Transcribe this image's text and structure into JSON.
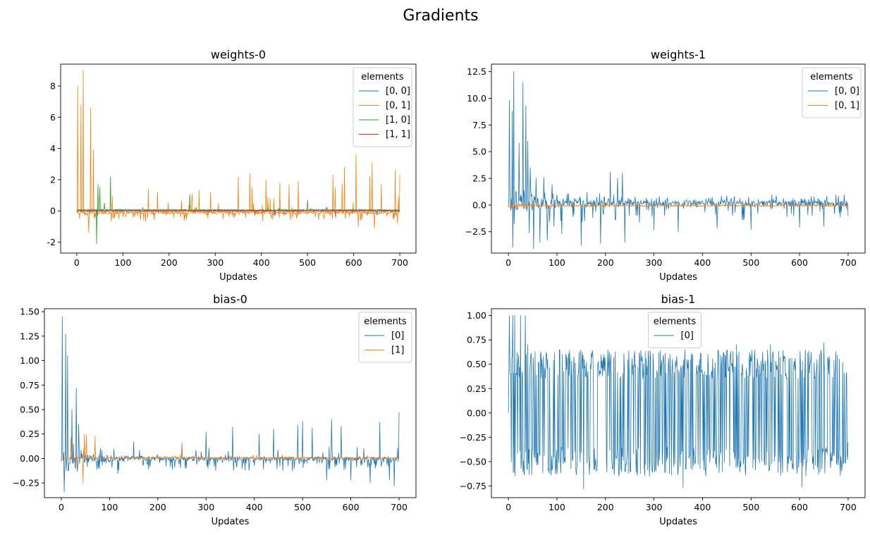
{
  "figure": {
    "title": "Gradients"
  },
  "chart_data": [
    {
      "type": "line",
      "title": "weights-0",
      "xlabel": "Updates",
      "ylabel": "",
      "xlim": [
        -35,
        735
      ],
      "ylim": [
        -2.7,
        9.4
      ],
      "xticks": [
        0,
        100,
        200,
        300,
        400,
        500,
        600,
        700
      ],
      "yticks": [
        -2,
        0,
        2,
        4,
        6,
        8
      ],
      "grid": false,
      "legend": {
        "title": "elements",
        "position": "top-right"
      },
      "series": [
        {
          "name": "[0, 0]",
          "color": "#1f77b4",
          "n": 701,
          "profile": {
            "seed": 11,
            "base": 0.03,
            "noise": 0.06,
            "decay": 0.04,
            "spikes_pos": 0.01,
            "spikes_neg": 0.03,
            "spike_pos_mag": 0.25,
            "spike_neg_mag": 0.3
          },
          "points": [
            [
              0,
              0.0
            ],
            [
              45,
              -0.3
            ],
            [
              430,
              -0.25
            ],
            [
              560,
              -0.3
            ],
            [
              650,
              -0.25
            ]
          ]
        },
        {
          "name": "[0, 1]",
          "color": "#ff7f0e",
          "n": 701,
          "profile": {
            "seed": 23,
            "base": -0.1,
            "noise": 0.1,
            "decay": 0.0,
            "spikes_pos": 0.035,
            "spikes_neg": 0.12,
            "spike_pos_mag": 1.2,
            "spike_neg_mag": 0.5
          },
          "points": [
            [
              2,
              8.0
            ],
            [
              6,
              -0.5
            ],
            [
              9,
              6.8
            ],
            [
              14,
              9.0
            ],
            [
              18,
              -0.3
            ],
            [
              26,
              -1.4
            ],
            [
              30,
              6.6
            ],
            [
              36,
              3.9
            ],
            [
              40,
              -0.4
            ],
            [
              155,
              1.4
            ],
            [
              175,
              1.2
            ],
            [
              250,
              1.1
            ],
            [
              265,
              1.3
            ],
            [
              290,
              1.2
            ],
            [
              350,
              2.2
            ],
            [
              375,
              2.4
            ],
            [
              380,
              1.5
            ],
            [
              410,
              2.0
            ],
            [
              440,
              1.8
            ],
            [
              460,
              1.7
            ],
            [
              480,
              1.9
            ],
            [
              555,
              2.3
            ],
            [
              560,
              1.5
            ],
            [
              575,
              1.7
            ],
            [
              580,
              2.8
            ],
            [
              605,
              3.6
            ],
            [
              610,
              -1.0
            ],
            [
              635,
              2.2
            ],
            [
              640,
              3.1
            ],
            [
              645,
              -1.1
            ],
            [
              660,
              1.7
            ],
            [
              690,
              2.6
            ],
            [
              695,
              -0.8
            ],
            [
              700,
              2.3
            ]
          ]
        },
        {
          "name": "[1, 0]",
          "color": "#2ca02c",
          "n": 701,
          "profile": {
            "seed": 37,
            "base": 0.06,
            "noise": 0.04,
            "decay": 0.0,
            "spikes_pos": 0.01,
            "spikes_neg": 0.005,
            "spike_pos_mag": 0.2,
            "spike_neg_mag": 0.1
          },
          "points": [
            [
              43,
              -2.1
            ],
            [
              46,
              1.7
            ],
            [
              50,
              1.5
            ],
            [
              60,
              0.5
            ],
            [
              73,
              2.2
            ],
            [
              245,
              1.0
            ],
            [
              500,
              0.7
            ]
          ]
        },
        {
          "name": "[1, 1]",
          "color": "#d62728",
          "n": 701,
          "profile": {
            "seed": 41,
            "base": 0.0,
            "noise": 0.03,
            "decay": 0.0,
            "spikes_pos": 0.0,
            "spikes_neg": 0.0,
            "spike_pos_mag": 0.0,
            "spike_neg_mag": 0.0
          },
          "points": []
        }
      ]
    },
    {
      "type": "line",
      "title": "weights-1",
      "xlabel": "Updates",
      "ylabel": "",
      "xlim": [
        -35,
        735
      ],
      "ylim": [
        -4.5,
        13.2
      ],
      "xticks": [
        0,
        100,
        200,
        300,
        400,
        500,
        600,
        700
      ],
      "yticks": [
        -2.5,
        0.0,
        2.5,
        5.0,
        7.5,
        10.0,
        12.5
      ],
      "grid": false,
      "legend": {
        "title": "elements",
        "position": "top-right"
      },
      "series": [
        {
          "name": "[0, 0]",
          "color": "#1f77b4",
          "n": 701,
          "profile": {
            "seed": 53,
            "base": 0.15,
            "noise": 0.25,
            "decay": 0.8,
            "spikes_pos": 0.25,
            "spikes_neg": 0.12,
            "spike_pos_mag": 0.6,
            "spike_neg_mag": 1.4
          },
          "points": [
            [
              2,
              9.8
            ],
            [
              5,
              -0.5
            ],
            [
              8,
              8.8
            ],
            [
              11,
              12.5
            ],
            [
              14,
              -0.3
            ],
            [
              22,
              5.8
            ],
            [
              30,
              11.5
            ],
            [
              36,
              9.3
            ],
            [
              40,
              6.0
            ],
            [
              45,
              3.5
            ],
            [
              52,
              -4.1
            ],
            [
              57,
              2.5
            ],
            [
              65,
              -3.5
            ],
            [
              73,
              2.6
            ],
            [
              80,
              -3.3
            ],
            [
              90,
              1.9
            ],
            [
              110,
              -2.7
            ],
            [
              150,
              -3.8
            ],
            [
              190,
              -3.6
            ],
            [
              210,
              3.1
            ],
            [
              225,
              2.5
            ],
            [
              235,
              3.0
            ],
            [
              240,
              -3.5
            ],
            [
              300,
              -2.3
            ],
            [
              350,
              -2.5
            ],
            [
              430,
              -2.2
            ],
            [
              500,
              -2.3
            ],
            [
              600,
              -2.1
            ],
            [
              650,
              -2.0
            ],
            [
              700,
              -1.0
            ]
          ]
        },
        {
          "name": "[0, 1]",
          "color": "#ff7f0e",
          "n": 701,
          "profile": {
            "seed": 67,
            "base": -0.05,
            "noise": 0.08,
            "decay": 0.1,
            "spikes_pos": 0.02,
            "spikes_neg": 0.02,
            "spike_pos_mag": 0.15,
            "spike_neg_mag": 0.15
          },
          "points": []
        }
      ]
    },
    {
      "type": "line",
      "title": "bias-0",
      "xlabel": "Updates",
      "ylabel": "",
      "xlim": [
        -35,
        735
      ],
      "ylim": [
        -0.4,
        1.53
      ],
      "xticks": [
        0,
        100,
        200,
        300,
        400,
        500,
        600,
        700
      ],
      "yticks": [
        -0.25,
        0.0,
        0.25,
        0.5,
        0.75,
        1.0,
        1.25,
        1.5
      ],
      "grid": false,
      "legend": {
        "title": "elements",
        "position": "top-right"
      },
      "series": [
        {
          "name": "[0]",
          "color": "#1f77b4",
          "n": 701,
          "profile": {
            "seed": 79,
            "base": 0.0,
            "noise": 0.02,
            "decay": 0.05,
            "spikes_pos": 0.05,
            "spikes_neg": 0.22,
            "spike_pos_mag": 0.12,
            "spike_neg_mag": 0.12
          },
          "points": [
            [
              2,
              1.45
            ],
            [
              6,
              -0.34
            ],
            [
              9,
              1.27
            ],
            [
              13,
              1.05
            ],
            [
              17,
              -0.05
            ],
            [
              22,
              0.5
            ],
            [
              25,
              0.15
            ],
            [
              31,
              0.72
            ],
            [
              36,
              0.35
            ],
            [
              150,
              0.17
            ],
            [
              250,
              0.16
            ],
            [
              300,
              0.27
            ],
            [
              355,
              0.32
            ],
            [
              410,
              0.25
            ],
            [
              440,
              0.3
            ],
            [
              490,
              0.34
            ],
            [
              500,
              0.38
            ],
            [
              520,
              0.31
            ],
            [
              550,
              -0.22
            ],
            [
              560,
              0.4
            ],
            [
              580,
              0.33
            ],
            [
              600,
              -0.22
            ],
            [
              640,
              -0.25
            ],
            [
              660,
              0.37
            ],
            [
              680,
              -0.22
            ],
            [
              690,
              -0.28
            ],
            [
              700,
              0.47
            ]
          ]
        },
        {
          "name": "[1]",
          "color": "#ff7f0e",
          "n": 701,
          "profile": {
            "seed": 83,
            "base": 0.005,
            "noise": 0.01,
            "decay": 0.0,
            "spikes_pos": 0.02,
            "spikes_neg": 0.01,
            "spike_pos_mag": 0.03,
            "spike_neg_mag": 0.03
          },
          "points": [
            [
              20,
              0.22
            ],
            [
              30,
              -0.1
            ],
            [
              45,
              -0.25
            ],
            [
              48,
              0.25
            ],
            [
              52,
              0.24
            ],
            [
              70,
              0.23
            ],
            [
              250,
              0.15
            ],
            [
              500,
              0.07
            ]
          ]
        }
      ]
    },
    {
      "type": "line",
      "title": "bias-1",
      "xlabel": "Updates",
      "ylabel": "",
      "xlim": [
        -35,
        735
      ],
      "ylim": [
        -0.87,
        1.07
      ],
      "xticks": [
        0,
        100,
        200,
        300,
        400,
        500,
        600,
        700
      ],
      "yticks": [
        -0.75,
        -0.5,
        -0.25,
        0.0,
        0.25,
        0.5,
        0.75,
        1.0
      ],
      "grid": false,
      "legend": {
        "title": "elements",
        "position": "top-center"
      },
      "series": [
        {
          "name": "[0]",
          "color": "#1f77b4",
          "n": 701,
          "profile": {
            "seed": 97,
            "oscillate": true,
            "hi": 0.5,
            "lo": -0.5,
            "jitter": 0.15
          },
          "points": [
            [
              0,
              0.0
            ],
            [
              2,
              1.0
            ],
            [
              6,
              -0.5
            ],
            [
              9,
              1.0
            ],
            [
              13,
              1.0
            ],
            [
              20,
              0.5
            ],
            [
              25,
              1.0
            ],
            [
              30,
              -0.6
            ],
            [
              35,
              1.0
            ],
            [
              40,
              0.7
            ],
            [
              45,
              0.5
            ],
            [
              155,
              -0.78
            ],
            [
              360,
              -0.77
            ],
            [
              470,
              0.7
            ],
            [
              540,
              0.7
            ],
            [
              605,
              -0.76
            ],
            [
              650,
              0.72
            ],
            [
              700,
              -0.3
            ]
          ]
        }
      ]
    }
  ]
}
